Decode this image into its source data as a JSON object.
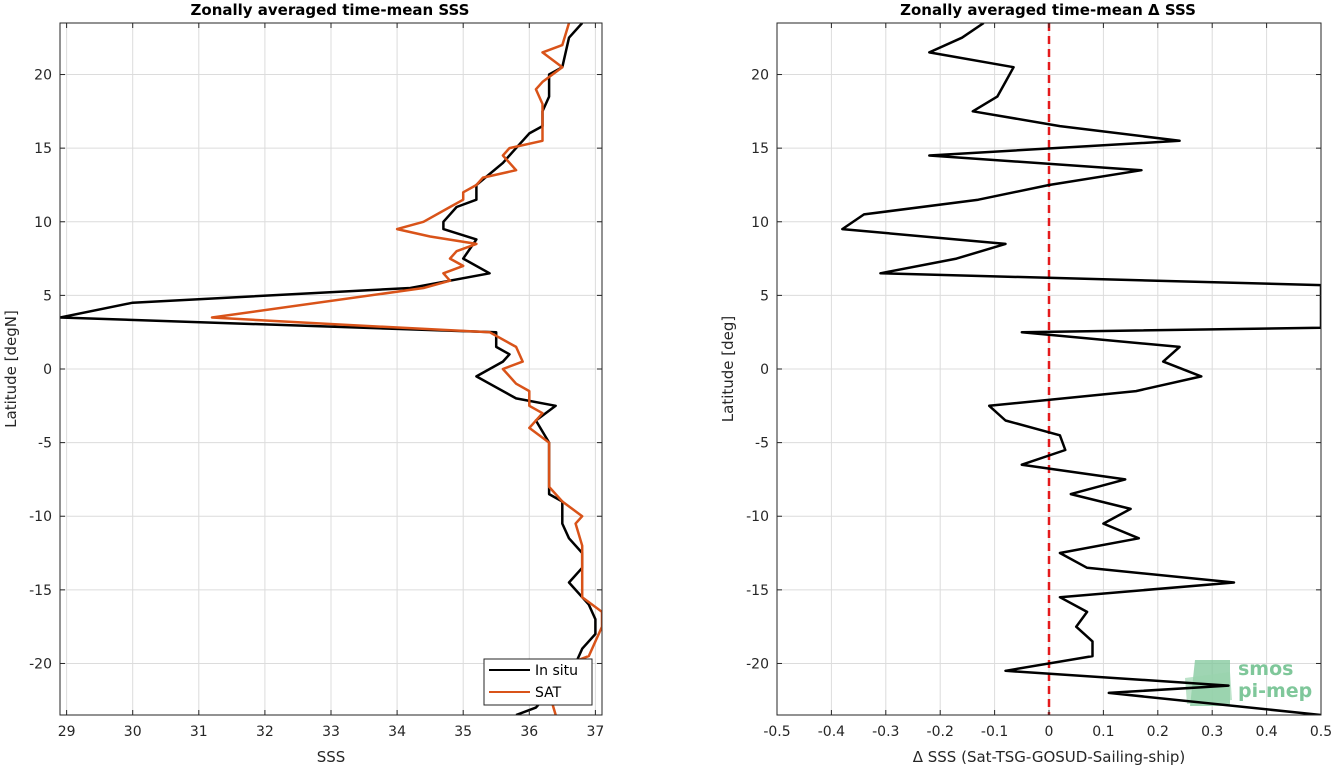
{
  "chart_data": [
    {
      "type": "line",
      "title": "Zonally averaged time-mean SSS",
      "xlabel": "SSS",
      "ylabel": "Latitude [degN]",
      "xlim": [
        28.9,
        37.1
      ],
      "ylim": [
        -23.5,
        23.5
      ],
      "xticks": [
        29,
        30,
        31,
        32,
        33,
        34,
        35,
        36,
        37
      ],
      "yticks": [
        -20,
        -15,
        -10,
        -5,
        0,
        5,
        10,
        15,
        20
      ],
      "grid": true,
      "legend_position": "bottom-right",
      "series": [
        {
          "name": "In situ",
          "color": "#000000",
          "points": [
            [
              36.8,
              23.5
            ],
            [
              36.6,
              22.5
            ],
            [
              36.5,
              20.5
            ],
            [
              36.3,
              20
            ],
            [
              36.3,
              18.5
            ],
            [
              36.2,
              17.5
            ],
            [
              36.2,
              16.5
            ],
            [
              36.0,
              16
            ],
            [
              35.8,
              15
            ],
            [
              35.6,
              14
            ],
            [
              35.2,
              12.5
            ],
            [
              35.2,
              11.5
            ],
            [
              34.9,
              11
            ],
            [
              34.8,
              10.5
            ],
            [
              34.7,
              10
            ],
            [
              34.7,
              9.5
            ],
            [
              35.2,
              8.8
            ],
            [
              35.0,
              7.5
            ],
            [
              35.4,
              6.5
            ],
            [
              34.2,
              5.5
            ],
            [
              30.0,
              4.5
            ],
            [
              28.9,
              3.5
            ],
            [
              35.5,
              2.5
            ],
            [
              35.5,
              1.5
            ],
            [
              35.7,
              1.0
            ],
            [
              35.6,
              0.5
            ],
            [
              35.2,
              -0.5
            ],
            [
              35.8,
              -2
            ],
            [
              36.4,
              -2.5
            ],
            [
              36.1,
              -3.5
            ],
            [
              36.3,
              -5
            ],
            [
              36.3,
              -7
            ],
            [
              36.3,
              -8.5
            ],
            [
              36.5,
              -9
            ],
            [
              36.5,
              -10.5
            ],
            [
              36.6,
              -11.5
            ],
            [
              36.8,
              -12.5
            ],
            [
              36.8,
              -13.5
            ],
            [
              36.6,
              -14.5
            ],
            [
              36.9,
              -16
            ],
            [
              37.0,
              -17
            ],
            [
              37.0,
              -18
            ],
            [
              36.8,
              -19
            ],
            [
              36.7,
              -20
            ],
            [
              36.5,
              -21
            ],
            [
              36.3,
              -22
            ],
            [
              36.1,
              -23
            ],
            [
              35.8,
              -23.5
            ]
          ]
        },
        {
          "name": "SAT",
          "color": "#d95319",
          "points": [
            [
              36.6,
              23.5
            ],
            [
              36.5,
              22
            ],
            [
              36.2,
              21.5
            ],
            [
              36.5,
              20.5
            ],
            [
              36.2,
              19.5
            ],
            [
              36.1,
              19
            ],
            [
              36.2,
              18
            ],
            [
              36.2,
              17
            ],
            [
              36.2,
              15.5
            ],
            [
              35.7,
              15
            ],
            [
              35.6,
              14.5
            ],
            [
              35.8,
              13.5
            ],
            [
              35.3,
              13
            ],
            [
              35.2,
              12.5
            ],
            [
              35.0,
              12
            ],
            [
              35.0,
              11.5
            ],
            [
              34.8,
              11
            ],
            [
              34.4,
              10
            ],
            [
              34.0,
              9.5
            ],
            [
              34.5,
              9
            ],
            [
              35.2,
              8.5
            ],
            [
              34.9,
              8
            ],
            [
              34.8,
              7.5
            ],
            [
              35.0,
              7
            ],
            [
              34.7,
              6.5
            ],
            [
              34.8,
              6
            ],
            [
              34.4,
              5.5
            ],
            [
              31.2,
              3.5
            ],
            [
              33.2,
              3
            ],
            [
              35.4,
              2.5
            ],
            [
              35.8,
              1.5
            ],
            [
              35.9,
              0.5
            ],
            [
              35.6,
              0
            ],
            [
              35.8,
              -1
            ],
            [
              36.0,
              -1.5
            ],
            [
              36.0,
              -2.5
            ],
            [
              36.2,
              -3
            ],
            [
              36.0,
              -4
            ],
            [
              36.3,
              -5
            ],
            [
              36.3,
              -6.5
            ],
            [
              36.3,
              -8
            ],
            [
              36.5,
              -9
            ],
            [
              36.8,
              -10
            ],
            [
              36.7,
              -10.5
            ],
            [
              36.8,
              -12
            ],
            [
              36.8,
              -14
            ],
            [
              36.8,
              -15.5
            ],
            [
              37.1,
              -16.5
            ],
            [
              37.1,
              -17.5
            ],
            [
              37.0,
              -18.5
            ],
            [
              36.9,
              -19.5
            ],
            [
              36.6,
              -20
            ],
            [
              36.5,
              -21
            ],
            [
              36.3,
              -22
            ],
            [
              36.4,
              -23.5
            ]
          ]
        }
      ]
    },
    {
      "type": "line",
      "title": "Zonally averaged time-mean Δ SSS",
      "xlabel": "Δ SSS (Sat-TSG-GOSUD-Sailing-ship)",
      "ylabel": "Latitude [deg]",
      "xlim": [
        -0.5,
        0.5
      ],
      "ylim": [
        -23.5,
        23.5
      ],
      "xticks": [
        -0.5,
        -0.4,
        -0.3,
        -0.2,
        -0.1,
        0,
        0.1,
        0.2,
        0.3,
        0.4,
        0.5
      ],
      "yticks": [
        -20,
        -15,
        -10,
        -5,
        0,
        5,
        10,
        15,
        20
      ],
      "grid": true,
      "reference_line": {
        "x": 0,
        "color": "#e41a1c",
        "style": "dashed"
      },
      "series": [
        {
          "color": "#000000",
          "points": [
            [
              -0.12,
              23.5
            ],
            [
              -0.16,
              22.5
            ],
            [
              -0.22,
              21.5
            ],
            [
              -0.065,
              20.5
            ],
            [
              -0.08,
              19.5
            ],
            [
              -0.095,
              18.5
            ],
            [
              -0.14,
              17.5
            ],
            [
              0.02,
              16.5
            ],
            [
              0.24,
              15.5
            ],
            [
              -0.22,
              14.5
            ],
            [
              0.17,
              13.5
            ],
            [
              0.0,
              12.5
            ],
            [
              -0.13,
              11.5
            ],
            [
              -0.34,
              10.5
            ],
            [
              -0.38,
              9.5
            ],
            [
              -0.08,
              8.5
            ],
            [
              -0.17,
              7.5
            ],
            [
              -0.31,
              6.5
            ],
            [
              0.5,
              5.7
            ],
            [
              0.5,
              2.8
            ],
            [
              -0.05,
              2.5
            ],
            [
              0.24,
              1.5
            ],
            [
              0.21,
              0.5
            ],
            [
              0.28,
              -0.5
            ],
            [
              0.16,
              -1.5
            ],
            [
              -0.11,
              -2.5
            ],
            [
              -0.08,
              -3.5
            ],
            [
              0.02,
              -4.5
            ],
            [
              0.03,
              -5.5
            ],
            [
              -0.05,
              -6.5
            ],
            [
              0.14,
              -7.5
            ],
            [
              0.04,
              -8.5
            ],
            [
              0.15,
              -9.5
            ],
            [
              0.1,
              -10.5
            ],
            [
              0.165,
              -11.5
            ],
            [
              0.02,
              -12.5
            ],
            [
              0.07,
              -13.5
            ],
            [
              0.34,
              -14.5
            ],
            [
              0.02,
              -15.5
            ],
            [
              0.07,
              -16.5
            ],
            [
              0.05,
              -17.5
            ],
            [
              0.08,
              -18.5
            ],
            [
              0.08,
              -19.5
            ],
            [
              -0.08,
              -20.5
            ],
            [
              0.33,
              -21.5
            ],
            [
              0.11,
              -22
            ],
            [
              0.5,
              -23.5
            ]
          ]
        }
      ]
    }
  ],
  "legend": {
    "items": [
      "In situ",
      "SAT"
    ]
  },
  "logo": {
    "line1": "smos",
    "line2": "pi-mep"
  }
}
